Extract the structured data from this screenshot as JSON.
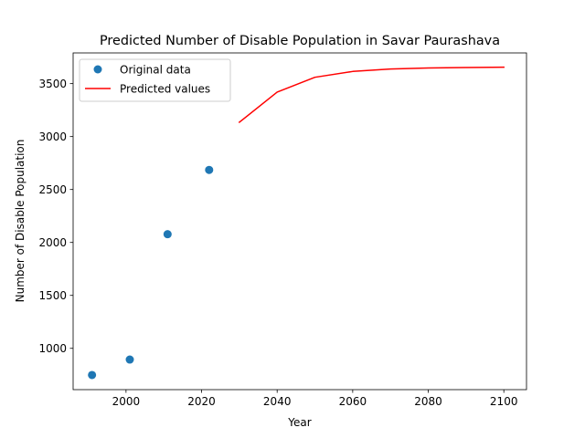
{
  "chart_data": {
    "type": "scatter+line",
    "title": "Predicted Number of Disable Population in Savar Paurashava",
    "xlabel": "Year",
    "ylabel": "Number of Disable Population",
    "xlim": [
      1986,
      2106
    ],
    "ylim": [
      610,
      3790
    ],
    "xticks": [
      2000,
      2020,
      2040,
      2060,
      2080,
      2100
    ],
    "yticks": [
      1000,
      1500,
      2000,
      2500,
      3000,
      3500
    ],
    "grid": false,
    "legend_position": "top-left",
    "series": [
      {
        "name": "Original data",
        "kind": "scatter",
        "color": "#1f77b4",
        "x": [
          1991,
          2001,
          2011,
          2022
        ],
        "y": [
          748,
          894,
          2078,
          2685
        ]
      },
      {
        "name": "Predicted values",
        "kind": "line",
        "color": "#ff0000",
        "x": [
          2030,
          2040,
          2050,
          2060,
          2070,
          2080,
          2090,
          2100
        ],
        "y": [
          3135,
          3420,
          3560,
          3615,
          3638,
          3648,
          3652,
          3655
        ]
      }
    ]
  }
}
